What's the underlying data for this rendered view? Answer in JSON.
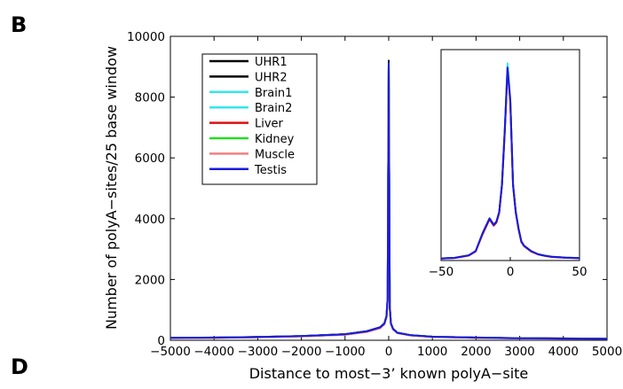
{
  "panel_letters": [
    "B",
    "D"
  ],
  "chart_data": [
    {
      "type": "line",
      "title": "",
      "xlabel": "Distance to most−3’ known polyA−site",
      "ylabel": "Number of polyA−sites/25 base window",
      "xlim": [
        -5000,
        5000
      ],
      "ylim": [
        0,
        10000
      ],
      "x_ticks": [
        -5000,
        -4000,
        -3000,
        -2000,
        -1000,
        0,
        1000,
        2000,
        3000,
        4000,
        5000
      ],
      "x_tick_labels": [
        "−5000",
        "−4000",
        "−3000",
        "−2000",
        "−1000",
        "0",
        "1000",
        "2000",
        "3000",
        "4000",
        "5000"
      ],
      "y_ticks": [
        0,
        2000,
        4000,
        6000,
        8000,
        10000
      ],
      "y_tick_labels": [
        "0",
        "2000",
        "4000",
        "6000",
        "8000",
        "10000"
      ],
      "grid": false,
      "legend_position": "top-left",
      "x": [
        -5000,
        -4000,
        -3000,
        -2000,
        -1000,
        -500,
        -200,
        -100,
        -50,
        -25,
        0,
        25,
        50,
        100,
        200,
        500,
        1000,
        2000,
        3000,
        4000,
        5000
      ],
      "series": [
        {
          "name": "UHR1",
          "color": "#000000",
          "values": [
            80,
            90,
            110,
            140,
            200,
            300,
            430,
            560,
            800,
            1400,
            9200,
            1100,
            560,
            380,
            250,
            170,
            120,
            90,
            70,
            60,
            50
          ]
        },
        {
          "name": "UHR2",
          "color": "#000000",
          "values": [
            78,
            88,
            108,
            138,
            198,
            298,
            425,
            555,
            790,
            1390,
            9150,
            1090,
            555,
            375,
            248,
            168,
            118,
            88,
            68,
            58,
            48
          ]
        },
        {
          "name": "Brain1",
          "color": "#33e6ee",
          "values": [
            75,
            86,
            104,
            135,
            192,
            290,
            415,
            545,
            780,
            1370,
            9100,
            1080,
            545,
            370,
            245,
            165,
            116,
            86,
            66,
            56,
            47
          ]
        },
        {
          "name": "Brain2",
          "color": "#33e6ee",
          "values": [
            74,
            85,
            103,
            134,
            190,
            288,
            412,
            542,
            776,
            1365,
            9080,
            1075,
            542,
            368,
            243,
            163,
            115,
            85,
            65,
            55,
            46
          ]
        },
        {
          "name": "Liver",
          "color": "#dd1111",
          "values": [
            72,
            83,
            100,
            130,
            185,
            280,
            400,
            530,
            760,
            1340,
            9050,
            1060,
            535,
            362,
            240,
            160,
            112,
            83,
            64,
            54,
            45
          ]
        },
        {
          "name": "Kidney",
          "color": "#22dd22",
          "values": [
            73,
            84,
            101,
            132,
            188,
            284,
            405,
            535,
            768,
            1352,
            9070,
            1068,
            538,
            365,
            241,
            162,
            113,
            84,
            64,
            54,
            45
          ]
        },
        {
          "name": "Muscle",
          "color": "#f08080",
          "values": [
            70,
            80,
            98,
            127,
            180,
            274,
            394,
            522,
            750,
            1320,
            9020,
            1050,
            528,
            358,
            236,
            158,
            110,
            81,
            62,
            52,
            44
          ]
        },
        {
          "name": "Testis",
          "color": "#1a1ae0",
          "values": [
            76,
            87,
            105,
            136,
            195,
            292,
            420,
            550,
            785,
            1380,
            9100,
            1085,
            550,
            372,
            246,
            166,
            117,
            87,
            67,
            57,
            48
          ]
        }
      ]
    },
    {
      "type": "line",
      "title": "",
      "xlabel": "",
      "ylabel": "",
      "xlim": [
        -50,
        50
      ],
      "ylim": [
        0,
        10000
      ],
      "x_ticks": [
        -50,
        0,
        50
      ],
      "x_tick_labels": [
        "−50",
        "0",
        "50"
      ],
      "y_ticks": [],
      "grid": false,
      "x": [
        -50,
        -40,
        -30,
        -25,
        -20,
        -15,
        -12,
        -10,
        -8,
        -6,
        -4,
        -2,
        0,
        2,
        4,
        6,
        8,
        10,
        12,
        15,
        20,
        25,
        30,
        40,
        50
      ],
      "series": [
        {
          "name": "UHR1",
          "color": "#000000",
          "values": [
            100,
            130,
            250,
            450,
            1300,
            2000,
            1700,
            1850,
            2300,
            3600,
            6200,
            9200,
            7600,
            3600,
            2300,
            1500,
            900,
            700,
            600,
            450,
            300,
            230,
            180,
            140,
            120
          ]
        },
        {
          "name": "Brain1",
          "color": "#33e6ee",
          "values": [
            95,
            125,
            240,
            440,
            1280,
            1980,
            1680,
            1830,
            2280,
            3580,
            6250,
            9350,
            7650,
            3580,
            2280,
            1480,
            880,
            690,
            590,
            440,
            295,
            225,
            175,
            135,
            115
          ]
        },
        {
          "name": "Liver",
          "color": "#dd1111",
          "values": [
            90,
            120,
            235,
            430,
            1250,
            1950,
            1650,
            1800,
            2250,
            3550,
            6100,
            9050,
            7500,
            3550,
            2250,
            1460,
            870,
            680,
            580,
            430,
            290,
            220,
            170,
            130,
            110
          ]
        },
        {
          "name": "Testis",
          "color": "#1a1ae0",
          "values": [
            98,
            128,
            245,
            445,
            1290,
            1990,
            1690,
            1840,
            2290,
            3590,
            6180,
            9150,
            7580,
            3590,
            2290,
            1490,
            890,
            695,
            595,
            445,
            298,
            228,
            178,
            138,
            118
          ]
        }
      ]
    }
  ]
}
